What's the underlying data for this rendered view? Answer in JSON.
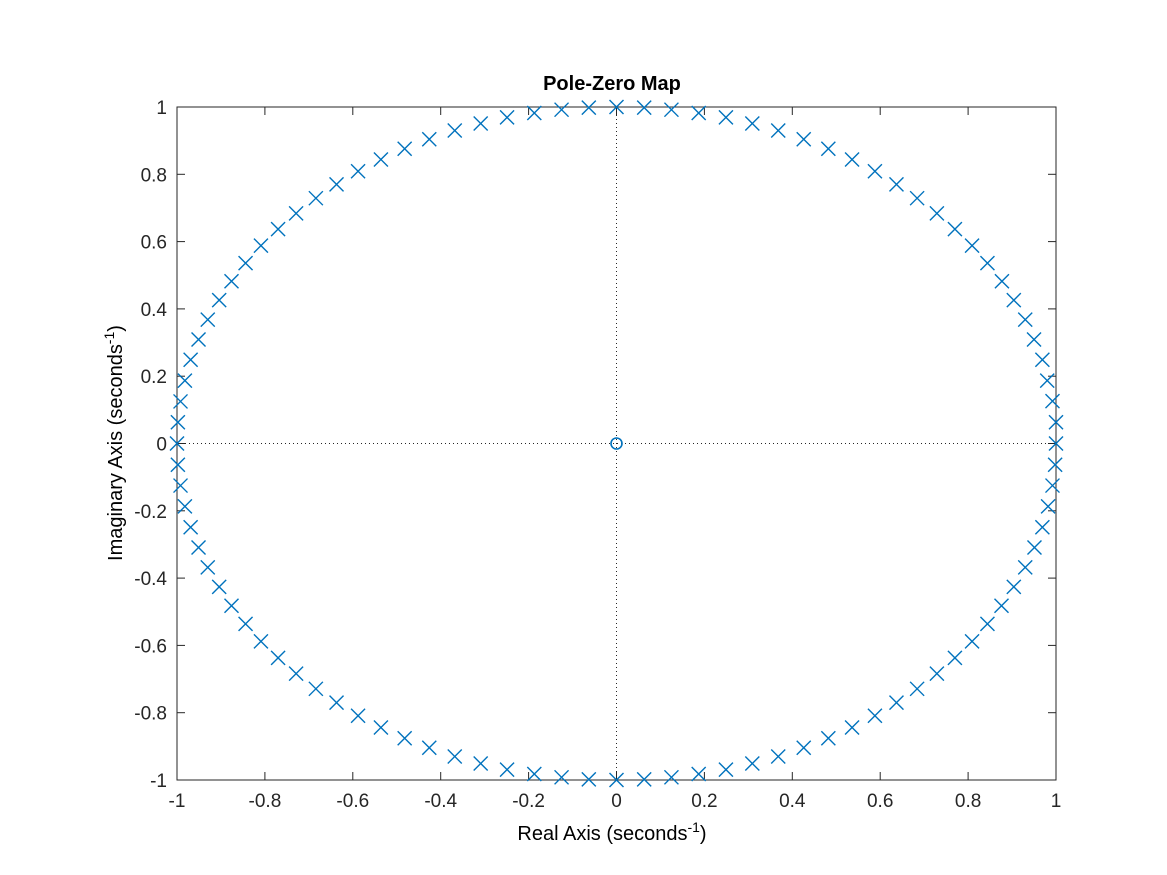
{
  "chart_data": {
    "type": "scatter",
    "title": "Pole-Zero Map",
    "xlabel": "Real Axis (seconds",
    "xlabel_sup": "-1",
    "xlabel_tail": ")",
    "ylabel": "Imaginary Axis (seconds",
    "ylabel_sup": "-1",
    "ylabel_tail": ")",
    "xlim": [
      -1,
      1
    ],
    "ylim": [
      -1,
      1
    ],
    "xticks": [
      -1,
      -0.8,
      -0.6,
      -0.4,
      -0.2,
      0,
      0.2,
      0.4,
      0.6,
      0.8,
      1
    ],
    "yticks": [
      -1,
      -0.8,
      -0.6,
      -0.4,
      -0.2,
      0,
      0.2,
      0.4,
      0.6,
      0.8,
      1
    ],
    "xtick_labels": [
      "-1",
      "-0.8",
      "-0.6",
      "-0.4",
      "-0.2",
      "0",
      "0.2",
      "0.4",
      "0.6",
      "0.8",
      "1"
    ],
    "ytick_labels": [
      "-1",
      "-0.8",
      "-0.6",
      "-0.4",
      "-0.2",
      "0",
      "0.2",
      "0.4",
      "0.6",
      "0.8",
      "1"
    ],
    "grid": false,
    "reference_lines": [
      "x = 0",
      "y = 0"
    ],
    "marker_color": "#0072BD",
    "series": [
      {
        "marker": "x",
        "points": [
          [
            1.0,
            0.063
          ],
          [
            0.992,
            0.126
          ],
          [
            0.98,
            0.187
          ],
          [
            0.969,
            0.249
          ],
          [
            0.95,
            0.309
          ],
          [
            0.93,
            0.368
          ],
          [
            0.904,
            0.426
          ],
          [
            0.877,
            0.482
          ],
          [
            0.844,
            0.536
          ],
          [
            0.809,
            0.588
          ],
          [
            0.77,
            0.637
          ],
          [
            0.729,
            0.684
          ],
          [
            0.684,
            0.729
          ],
          [
            0.637,
            0.77
          ],
          [
            0.588,
            0.809
          ],
          [
            0.536,
            0.844
          ],
          [
            0.482,
            0.876
          ],
          [
            0.426,
            0.904
          ],
          [
            0.368,
            0.93
          ],
          [
            0.309,
            0.951
          ],
          [
            0.249,
            0.969
          ],
          [
            0.187,
            0.982
          ],
          [
            0.125,
            0.992
          ],
          [
            0.063,
            0.998
          ],
          [
            0.0,
            1.0
          ],
          [
            -0.063,
            0.998
          ],
          [
            -0.125,
            0.992
          ],
          [
            -0.187,
            0.982
          ],
          [
            -0.249,
            0.969
          ],
          [
            -0.309,
            0.951
          ],
          [
            -0.368,
            0.93
          ],
          [
            -0.426,
            0.904
          ],
          [
            -0.482,
            0.876
          ],
          [
            -0.536,
            0.844
          ],
          [
            -0.588,
            0.809
          ],
          [
            -0.637,
            0.77
          ],
          [
            -0.684,
            0.729
          ],
          [
            -0.729,
            0.684
          ],
          [
            -0.77,
            0.637
          ],
          [
            -0.809,
            0.588
          ],
          [
            -0.844,
            0.536
          ],
          [
            -0.876,
            0.482
          ],
          [
            -0.904,
            0.426
          ],
          [
            -0.93,
            0.368
          ],
          [
            -0.951,
            0.309
          ],
          [
            -0.969,
            0.249
          ],
          [
            -0.982,
            0.187
          ],
          [
            -0.992,
            0.125
          ],
          [
            -0.998,
            0.063
          ],
          [
            -1.0,
            0.0
          ],
          [
            -0.998,
            -0.063
          ],
          [
            -0.992,
            -0.125
          ],
          [
            -0.982,
            -0.187
          ],
          [
            -0.969,
            -0.249
          ],
          [
            -0.951,
            -0.309
          ],
          [
            -0.93,
            -0.368
          ],
          [
            -0.904,
            -0.426
          ],
          [
            -0.876,
            -0.482
          ],
          [
            -0.844,
            -0.536
          ],
          [
            -0.809,
            -0.588
          ],
          [
            -0.77,
            -0.637
          ],
          [
            -0.729,
            -0.684
          ],
          [
            -0.684,
            -0.729
          ],
          [
            -0.637,
            -0.77
          ],
          [
            -0.588,
            -0.809
          ],
          [
            -0.536,
            -0.844
          ],
          [
            -0.482,
            -0.876
          ],
          [
            -0.426,
            -0.904
          ],
          [
            -0.368,
            -0.93
          ],
          [
            -0.309,
            -0.951
          ],
          [
            -0.249,
            -0.969
          ],
          [
            -0.187,
            -0.982
          ],
          [
            -0.125,
            -0.992
          ],
          [
            -0.063,
            -0.998
          ],
          [
            0.0,
            -1.0
          ],
          [
            0.063,
            -0.998
          ],
          [
            0.125,
            -0.992
          ],
          [
            0.187,
            -0.982
          ],
          [
            0.249,
            -0.969
          ],
          [
            0.309,
            -0.951
          ],
          [
            0.368,
            -0.93
          ],
          [
            0.426,
            -0.904
          ],
          [
            0.482,
            -0.876
          ],
          [
            0.536,
            -0.844
          ],
          [
            0.588,
            -0.809
          ],
          [
            0.637,
            -0.77
          ],
          [
            0.684,
            -0.729
          ],
          [
            0.729,
            -0.684
          ],
          [
            0.77,
            -0.637
          ],
          [
            0.809,
            -0.588
          ],
          [
            0.844,
            -0.536
          ],
          [
            0.876,
            -0.482
          ],
          [
            0.904,
            -0.426
          ],
          [
            0.93,
            -0.368
          ],
          [
            0.951,
            -0.309
          ],
          [
            0.969,
            -0.249
          ],
          [
            0.982,
            -0.187
          ],
          [
            0.992,
            -0.125
          ],
          [
            0.998,
            -0.063
          ],
          [
            1.0,
            0.0
          ]
        ]
      },
      {
        "marker": "o",
        "points": [
          [
            0,
            0
          ]
        ]
      }
    ]
  }
}
